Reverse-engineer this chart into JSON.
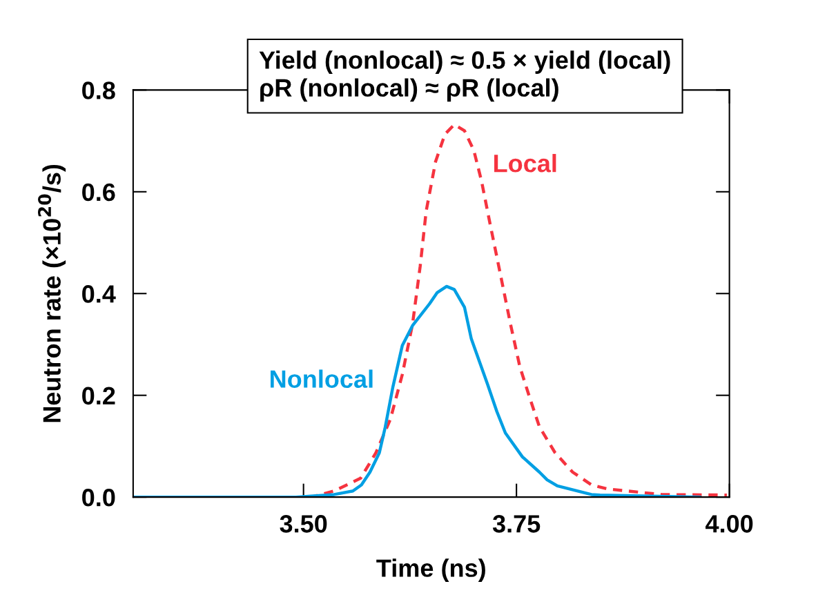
{
  "chart_data": {
    "type": "line",
    "xlabel": "Time (ns)",
    "ylabel": "Neutron rate (×10$^{20}$/s)",
    "xlim": [
      3.3,
      4.0
    ],
    "ylim": [
      0,
      0.8
    ],
    "xticks": [
      {
        "value": 3.5,
        "label": "3.50"
      },
      {
        "value": 3.75,
        "label": "3.75"
      },
      {
        "value": 4.0,
        "label": "4.00"
      }
    ],
    "yticks": [
      {
        "value": 0,
        "label": "0.0"
      },
      {
        "value": 0.2,
        "label": "0.2"
      },
      {
        "value": 0.4,
        "label": "0.4"
      },
      {
        "value": 0.6,
        "label": "0.6"
      },
      {
        "value": 0.8,
        "label": "0.8"
      }
    ],
    "grid": false,
    "legend": false,
    "annotations": [
      "Yield (nonlocal) ≈ 0.5 × yield (local)\nρR (nonlocal) ≈ ρR (local)"
    ],
    "series": [
      {
        "name": "Local",
        "color": "#f5333f",
        "line_style": "dashed",
        "x": [
          3.3,
          3.509,
          3.536,
          3.567,
          3.585,
          3.602,
          3.616,
          3.628,
          3.637,
          3.644,
          3.655,
          3.666,
          3.677,
          3.689,
          3.7,
          3.709,
          3.719,
          3.731,
          3.743,
          3.754,
          3.766,
          3.777,
          3.795,
          3.816,
          3.838,
          3.857,
          3.921,
          3.997
        ],
        "values": [
          0,
          0,
          0.012,
          0.037,
          0.087,
          0.153,
          0.241,
          0.34,
          0.454,
          0.562,
          0.659,
          0.713,
          0.732,
          0.72,
          0.681,
          0.621,
          0.537,
          0.439,
          0.34,
          0.256,
          0.193,
          0.138,
          0.088,
          0.049,
          0.024,
          0.016,
          0.005,
          0.004
        ]
      },
      {
        "name": "Nonlocal",
        "color": "#009fe3",
        "line_style": "solid",
        "x": [
          3.3,
          3.491,
          3.536,
          3.558,
          3.568,
          3.578,
          3.589,
          3.596,
          3.605,
          3.616,
          3.628,
          3.648,
          3.657,
          3.668,
          3.677,
          3.689,
          3.697,
          3.716,
          3.727,
          3.737,
          3.757,
          3.777,
          3.786,
          3.798,
          3.838,
          3.848,
          3.965
        ],
        "values": [
          0,
          0,
          0.005,
          0.012,
          0.024,
          0.049,
          0.087,
          0.138,
          0.217,
          0.298,
          0.337,
          0.38,
          0.402,
          0.414,
          0.408,
          0.373,
          0.311,
          0.222,
          0.168,
          0.126,
          0.079,
          0.049,
          0.034,
          0.022,
          0.005,
          0.004,
          0
        ]
      }
    ]
  }
}
